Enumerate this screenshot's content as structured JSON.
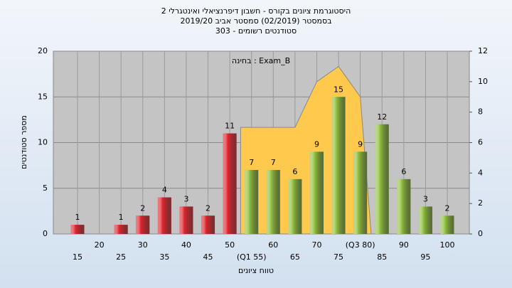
{
  "chart_data": {
    "type": "bar",
    "title": "היסטוגרמת ציונים בקורס - חשבון דיפרנציאלי ואינטגרלי 2",
    "subtitle": "בסמסטר (02/2019) סמסטר אביב 2019/20",
    "subtitle2": "סטודנטים רשומים - 303",
    "annotation": "בחינה : Exam_B",
    "ylabel": "מספר סטודנטים",
    "xlabel": "טווח ציונים",
    "categories": [
      "15",
      "20",
      "25",
      "30",
      "35",
      "40",
      "45",
      "50",
      "(Q1 55)",
      "60",
      "65",
      "70",
      "75",
      "(Q3 80)",
      "85",
      "90",
      "95",
      "100"
    ],
    "values": [
      1,
      null,
      1,
      2,
      4,
      3,
      2,
      11,
      7,
      7,
      6,
      9,
      15,
      9,
      12,
      6,
      3,
      2
    ],
    "colors": [
      "#e0242c",
      "#e0242c",
      "#e0242c",
      "#e0242c",
      "#e0242c",
      "#e0242c",
      "#e0242c",
      "#e0242c",
      "#8fbf3c",
      "#8fbf3c",
      "#8fbf3c",
      "#8fbf3c",
      "#8fbf3c",
      "#8fbf3c",
      "#8fbf3c",
      "#8fbf3c",
      "#8fbf3c",
      "#8fbf3c"
    ],
    "area": {
      "axis": "y2",
      "color": "#ffc94d",
      "values": [
        null,
        null,
        null,
        null,
        null,
        null,
        null,
        null,
        7,
        7,
        7,
        10,
        11,
        9,
        null,
        null,
        null,
        null
      ]
    },
    "ylim": [
      0,
      20
    ],
    "yticks": [
      0,
      5,
      10,
      15,
      20
    ],
    "y2lim": [
      0,
      12
    ],
    "y2ticks": [
      0,
      2,
      4,
      6,
      8,
      10,
      12
    ],
    "grid": true
  }
}
